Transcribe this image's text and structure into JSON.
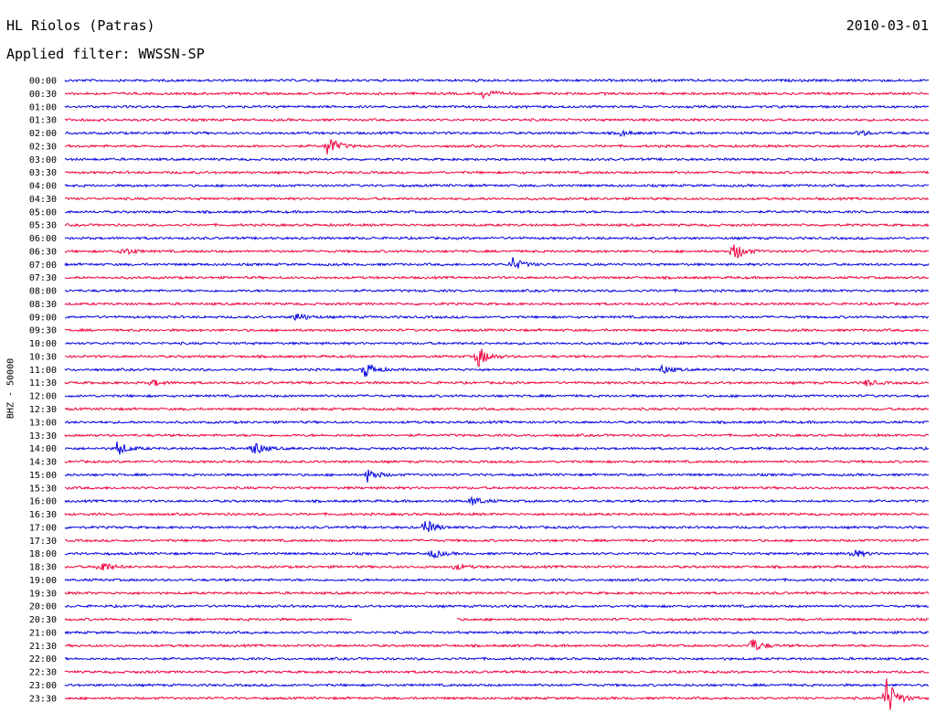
{
  "header": {
    "station": "HL Riolos (Patras)",
    "date": "2010-03-01",
    "filter": "Applied filter: WWSSN-SP"
  },
  "colors": {
    "blue": "#0000e0",
    "red": "#f0003c"
  },
  "chart_data": {
    "type": "line",
    "title": "HL Riolos (Patras)",
    "subtitle": "Applied filter: WWSSN-SP",
    "ylabel": "BHZ - 50000",
    "xlabel": "",
    "grid": false,
    "row_labels": [
      "00:00",
      "00:30",
      "01:00",
      "01:30",
      "02:00",
      "02:30",
      "03:00",
      "03:30",
      "04:00",
      "04:30",
      "05:00",
      "05:30",
      "06:00",
      "06:30",
      "07:00",
      "07:30",
      "08:00",
      "08:30",
      "09:00",
      "09:30",
      "10:00",
      "10:30",
      "11:00",
      "11:30",
      "12:00",
      "12:30",
      "13:00",
      "13:30",
      "14:00",
      "14:30",
      "15:00",
      "15:30",
      "16:00",
      "16:30",
      "17:00",
      "17:30",
      "18:00",
      "18:30",
      "19:00",
      "19:30",
      "20:00",
      "20:30",
      "21:00",
      "21:30",
      "22:00",
      "22:30",
      "23:00",
      "23:30"
    ],
    "row_colors": [
      "blue",
      "red"
    ],
    "x_range_minutes": [
      0,
      30
    ],
    "events": [
      {
        "row": "00:30",
        "minute": 14.5,
        "amplitude": 6
      },
      {
        "row": "02:00",
        "minute": 19.3,
        "amplitude": 3
      },
      {
        "row": "02:00",
        "minute": 27.5,
        "amplitude": 4
      },
      {
        "row": "02:30",
        "minute": 9.1,
        "amplitude": 13
      },
      {
        "row": "06:30",
        "minute": 2.0,
        "amplitude": 5
      },
      {
        "row": "06:30",
        "minute": 23.2,
        "amplitude": 12
      },
      {
        "row": "07:00",
        "minute": 15.5,
        "amplitude": 9
      },
      {
        "row": "09:00",
        "minute": 8.0,
        "amplitude": 6
      },
      {
        "row": "10:30",
        "minute": 14.3,
        "amplitude": 14
      },
      {
        "row": "11:00",
        "minute": 10.4,
        "amplitude": 10
      },
      {
        "row": "11:00",
        "minute": 20.7,
        "amplitude": 5
      },
      {
        "row": "11:30",
        "minute": 3.0,
        "amplitude": 4
      },
      {
        "row": "11:30",
        "minute": 27.8,
        "amplitude": 4
      },
      {
        "row": "14:00",
        "minute": 1.8,
        "amplitude": 9
      },
      {
        "row": "14:00",
        "minute": 6.5,
        "amplitude": 10
      },
      {
        "row": "15:00",
        "minute": 10.5,
        "amplitude": 8
      },
      {
        "row": "16:00",
        "minute": 14.1,
        "amplitude": 6
      },
      {
        "row": "17:00",
        "minute": 12.5,
        "amplitude": 9
      },
      {
        "row": "18:00",
        "minute": 12.7,
        "amplitude": 6
      },
      {
        "row": "18:00",
        "minute": 27.3,
        "amplitude": 6
      },
      {
        "row": "18:30",
        "minute": 1.2,
        "amplitude": 8
      },
      {
        "row": "18:30",
        "minute": 13.5,
        "amplitude": 4
      },
      {
        "row": "21:30",
        "minute": 23.8,
        "amplitude": 10
      },
      {
        "row": "23:30",
        "minute": 28.5,
        "amplitude": 26
      }
    ],
    "gaps": [
      {
        "row": "20:30",
        "start_minute": 10.0,
        "end_minute": 13.6
      }
    ]
  }
}
